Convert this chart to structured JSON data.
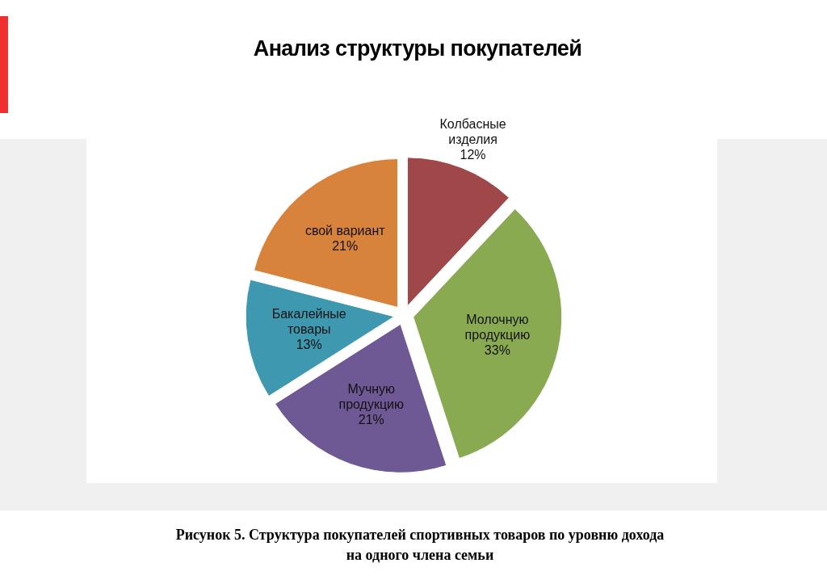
{
  "chart_data": {
    "type": "pie",
    "title": "Анализ структуры покупателей",
    "categories": [
      "Колбасные изделия",
      "Молочную продукцию",
      "Мучную продукцию",
      "Бакалейные товары",
      "свой вариант"
    ],
    "values": [
      12,
      33,
      21,
      13,
      21
    ],
    "value_labels": [
      "12%",
      "33%",
      "21%",
      "13%",
      "21%"
    ],
    "colors": [
      "#a0474a",
      "#8aaa52",
      "#6e5994",
      "#3e98b0",
      "#d8833c"
    ],
    "annotations": [
      "Рисунок 5. Структура покупателей спортивных товаров по уровню дохода на одного члена семьи"
    ]
  }
}
